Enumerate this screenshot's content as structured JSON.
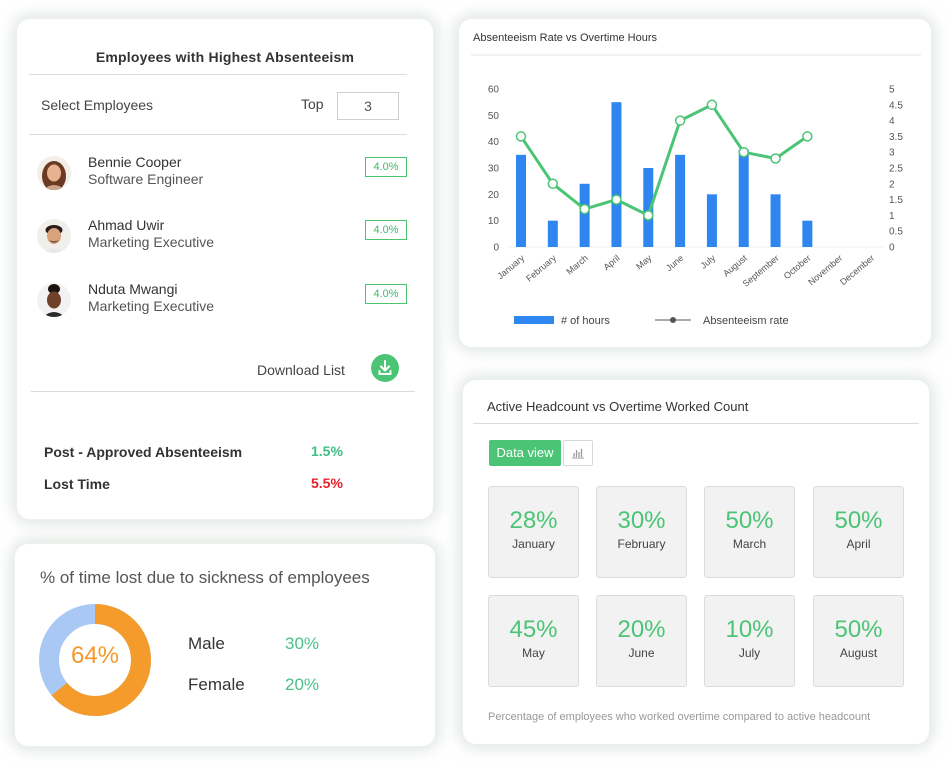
{
  "employees_card": {
    "title": "Employees with Highest Absenteeism",
    "select_label": "Select Employees",
    "top_label": "Top",
    "top_value": "3",
    "employees": [
      {
        "name": "Bennie Cooper",
        "role": "Software Engineer",
        "badge": "4.0%"
      },
      {
        "name": "Ahmad Uwir",
        "role": "Marketing Executive",
        "badge": "4.0%"
      },
      {
        "name": "Nduta Mwangi",
        "role": "Marketing Executive",
        "badge": "4.0%"
      }
    ],
    "download_label": "Download List",
    "stats": [
      {
        "label": "Post - Approved Absenteeism",
        "value": "1.5%",
        "color": "#3fbf86"
      },
      {
        "label": "Lost Time",
        "value": "5.5%",
        "color": "#e8202a"
      }
    ]
  },
  "sickness_card": {
    "title": "% of time lost due to sickness of employees",
    "center_value": "64%",
    "donut_fraction": 0.64,
    "colors": {
      "main": "#f59b2b",
      "rest": "#a9c9f4"
    },
    "rows": [
      {
        "label": "Male",
        "value": "30%"
      },
      {
        "label": "Female",
        "value": "20%"
      }
    ]
  },
  "chart_card": {
    "title": "Absenteeism Rate vs Overtime Hours"
  },
  "chart_data": {
    "type": "bar",
    "title": "Absenteeism Rate vs Overtime Hours",
    "categories": [
      "January",
      "February",
      "March",
      "April",
      "May",
      "June",
      "July",
      "August",
      "September",
      "October",
      "November",
      "December"
    ],
    "series": [
      {
        "name": "# of hours",
        "type": "bar",
        "axis": "left",
        "color": "#2f86f0",
        "values": [
          35,
          10,
          24,
          55,
          30,
          35,
          20,
          37,
          20,
          10,
          null,
          null
        ]
      },
      {
        "name": "Absenteeism rate",
        "type": "line",
        "axis": "right",
        "color": "#4cc475",
        "values": [
          3.5,
          2.0,
          1.2,
          1.5,
          1.0,
          4.0,
          4.5,
          3.0,
          2.8,
          3.5,
          null,
          null
        ]
      }
    ],
    "ylim_left": [
      0,
      60
    ],
    "ylim_right": [
      0,
      5
    ],
    "yticks_left": [
      "0",
      "10",
      "20",
      "30",
      "40",
      "50",
      "60"
    ],
    "yticks_right": [
      "0",
      "0.5",
      "1",
      "1.5",
      "2",
      "2.5",
      "3",
      "3.5",
      "4",
      "4.5",
      "5"
    ],
    "legend_placement": "bottom",
    "grid": false
  },
  "headcount_card": {
    "title": "Active Headcount vs Overtime Worked Count",
    "data_view_label": "Data view",
    "chart_view_icon": "bar-chart-icon",
    "tiles": [
      {
        "value": "28%",
        "label": "January"
      },
      {
        "value": "30%",
        "label": "February"
      },
      {
        "value": "50%",
        "label": "March"
      },
      {
        "value": "50%",
        "label": "April"
      },
      {
        "value": "45%",
        "label": "May"
      },
      {
        "value": "20%",
        "label": "June"
      },
      {
        "value": "10%",
        "label": "July"
      },
      {
        "value": "50%",
        "label": "August"
      }
    ],
    "footnote": "Percentage of employees who worked overtime compared to active headcount"
  }
}
